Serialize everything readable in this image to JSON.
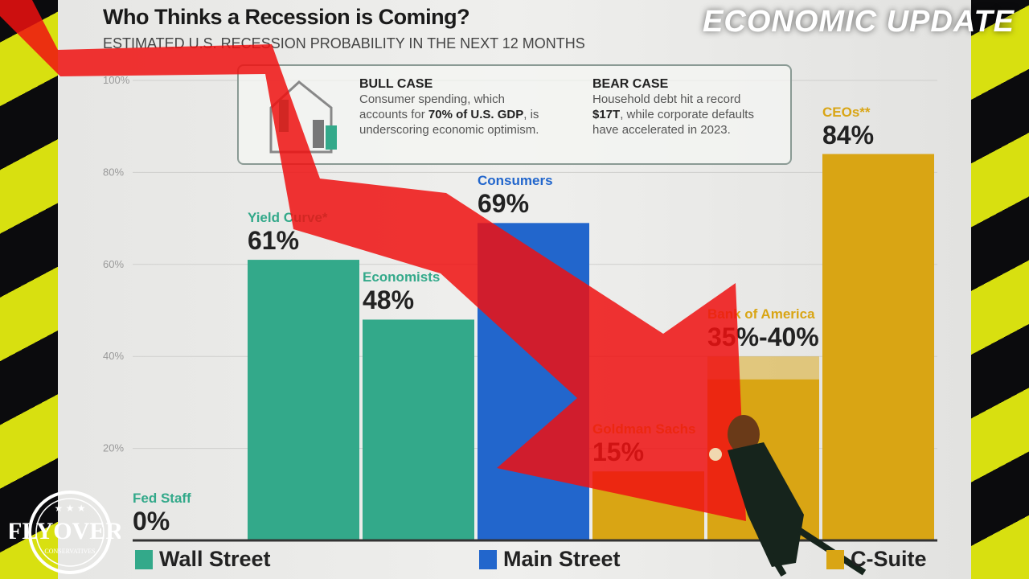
{
  "banner": "ECONOMIC UPDATE",
  "logo": {
    "text": "FLYOVER",
    "sub": "CONSERVATIVES"
  },
  "callout": {
    "bull": {
      "title": "BULL CASE",
      "line1": "Consumer spending, which",
      "line2a": "accounts for ",
      "line2b": "70% of U.S. GDP",
      "line2c": ", is",
      "line3": "underscoring economic optimism."
    },
    "bear": {
      "title": "BEAR CASE",
      "line1": "Household debt hit a record",
      "line2a": "$17T",
      "line2b": ", while corporate defaults",
      "line3": "have accelerated in 2023."
    }
  },
  "colors": {
    "wall_street": "#33a98a",
    "main_street": "#2266cc",
    "c_suite": "#d9a514",
    "arrow": "#ee1111"
  },
  "chart_data": {
    "type": "bar",
    "title": "Who Thinks a Recession is Coming?",
    "subtitle": "ESTIMATED U.S. RECESSION PROBABILITY IN THE NEXT 12 MONTHS",
    "ylim": [
      0,
      100
    ],
    "yticks": [
      "20%",
      "40%",
      "60%",
      "80%",
      "100%"
    ],
    "grid": true,
    "categories": [
      "Fed Staff",
      "Yield Curve*",
      "Economists",
      "Consumers",
      "Goldman Sachs",
      "Bank of America",
      "CEOs**"
    ],
    "values": [
      0,
      61,
      48,
      69,
      15,
      40,
      84
    ],
    "range_low": [
      null,
      null,
      null,
      null,
      null,
      35,
      null
    ],
    "labels": [
      "0%",
      "61%",
      "48%",
      "69%",
      "15%",
      "35%-40%",
      "84%"
    ],
    "groups": [
      "wall_street",
      "wall_street",
      "wall_street",
      "main_street",
      "c_suite",
      "c_suite",
      "c_suite"
    ],
    "legend": [
      {
        "key": "wall_street",
        "name": "Wall Street"
      },
      {
        "key": "main_street",
        "name": "Main Street"
      },
      {
        "key": "c_suite",
        "name": "C-Suite"
      }
    ],
    "legend_placement": "bottom"
  }
}
